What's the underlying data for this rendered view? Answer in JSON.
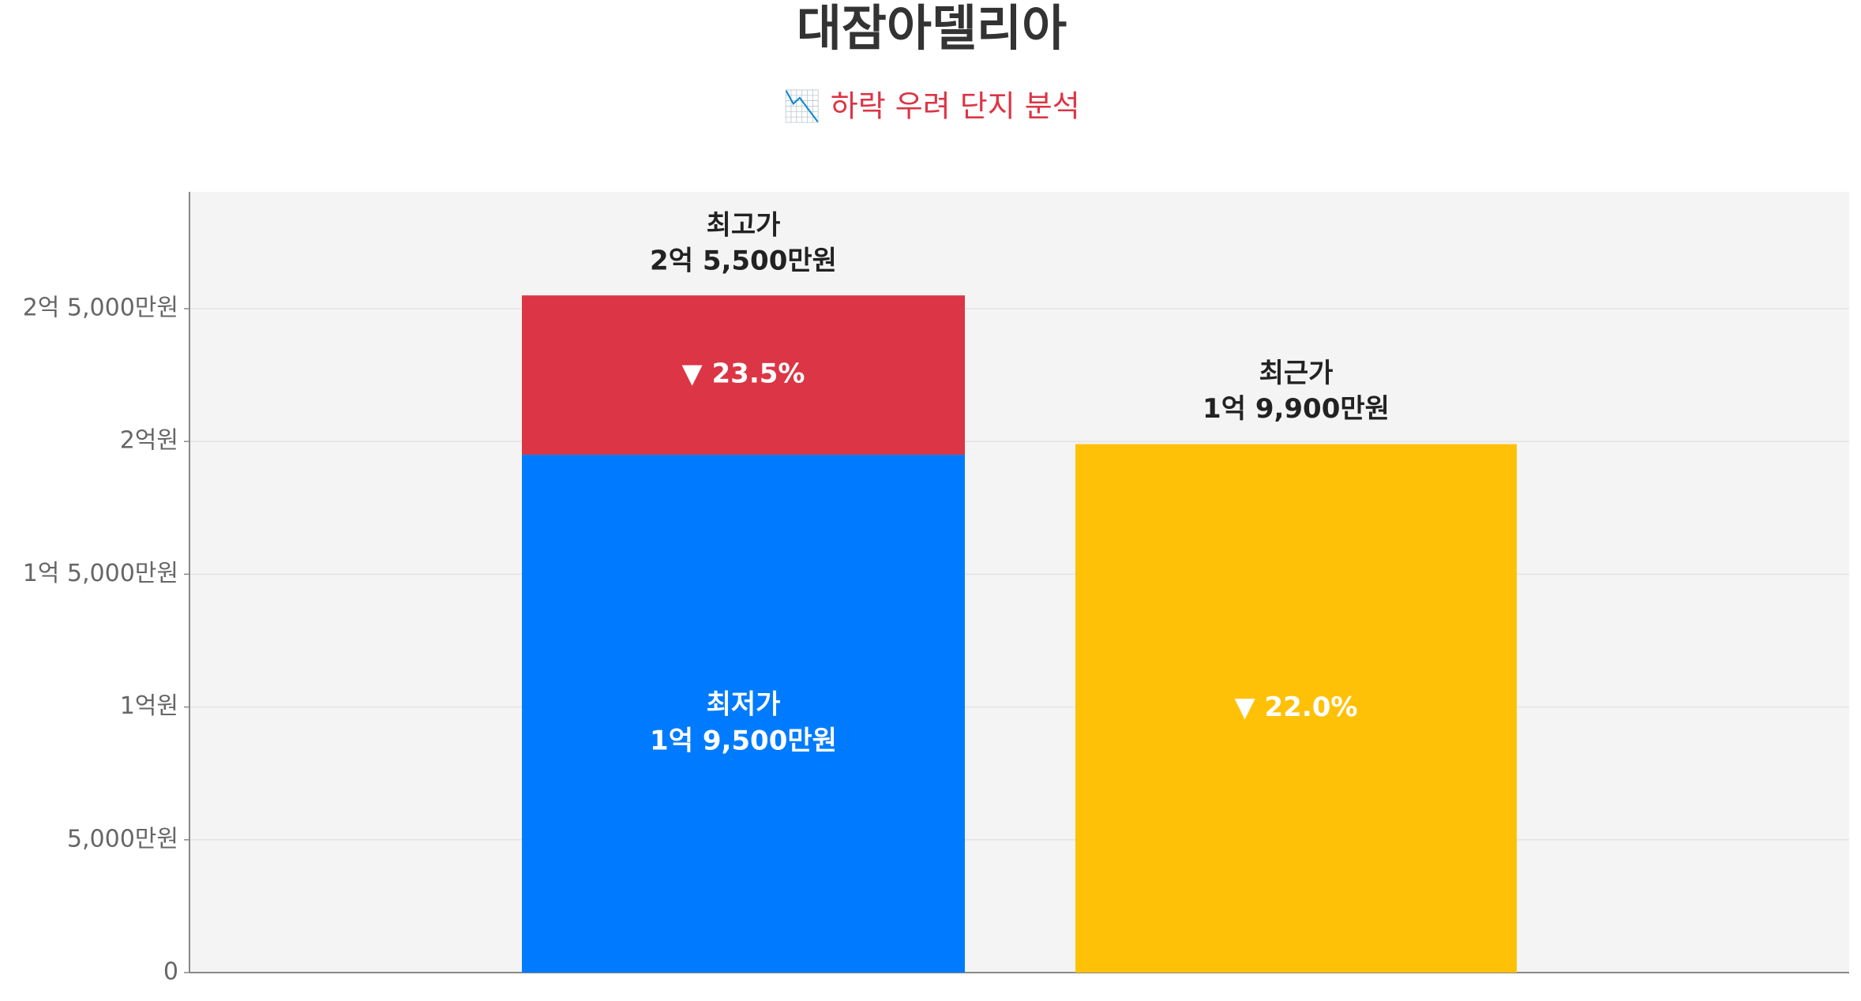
{
  "chart_data": {
    "type": "bar",
    "title": "대잠아델리아",
    "subtitle": "📉 하락 우려 단지 분석",
    "categories": [
      null,
      null
    ],
    "series": [
      {
        "name": "최저가",
        "color": "#007bff",
        "values": [
          19500,
          null
        ],
        "value_labels": [
          "1억 9,500만원",
          null
        ]
      },
      {
        "color": "#dc3545",
        "values": [
          6000,
          null
        ]
      },
      {
        "name": "최근가",
        "color": "#ffc107",
        "values": [
          null,
          19900
        ],
        "value_labels": [
          null,
          "1억 9,900만원"
        ]
      }
    ],
    "annotations": [
      {
        "text": "최고가",
        "value": 25500,
        "label": "2억 5,500만원"
      }
    ],
    "changes": [
      {
        "value": 23.5,
        "label": "▼ 23.5%"
      },
      {
        "value": 22.0,
        "label": "▼ 22.0%"
      }
    ],
    "ylim": [
      0,
      29400
    ],
    "yticks": [
      0,
      {
        "value": 5000,
        "label": "5,000만원"
      },
      {
        "value": 10000,
        "label": "1억원"
      },
      {
        "value": 15000,
        "label": "1억 5,000만원"
      },
      {
        "value": 20000,
        "label": "2억원"
      },
      {
        "value": 25000,
        "label": "2억 5,000만원"
      }
    ],
    "grid": true
  }
}
